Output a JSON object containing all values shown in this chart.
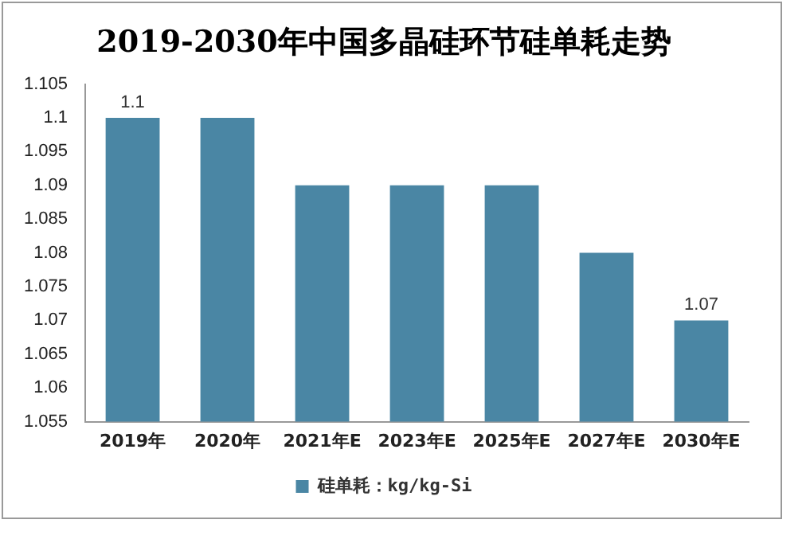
{
  "chart_data": {
    "type": "bar",
    "title": "2019-2030年中国多晶硅环节硅单耗走势",
    "categories": [
      "2019年",
      "2020年",
      "2021年E",
      "2023年E",
      "2025年E",
      "2027年E",
      "2030年E"
    ],
    "series": [
      {
        "name": "硅单耗：kg/kg-Si",
        "color": "#4a86a4",
        "values": [
          1.1,
          1.1,
          1.09,
          1.09,
          1.09,
          1.08,
          1.07
        ],
        "value_labels": [
          "1.1",
          null,
          null,
          null,
          null,
          null,
          "1.07"
        ]
      }
    ],
    "ylim": [
      1.055,
      1.105
    ],
    "yticks": [
      1.055,
      1.06,
      1.065,
      1.07,
      1.075,
      1.08,
      1.085,
      1.09,
      1.095,
      1.1,
      1.105
    ],
    "grid": false,
    "legend": "bottom"
  }
}
